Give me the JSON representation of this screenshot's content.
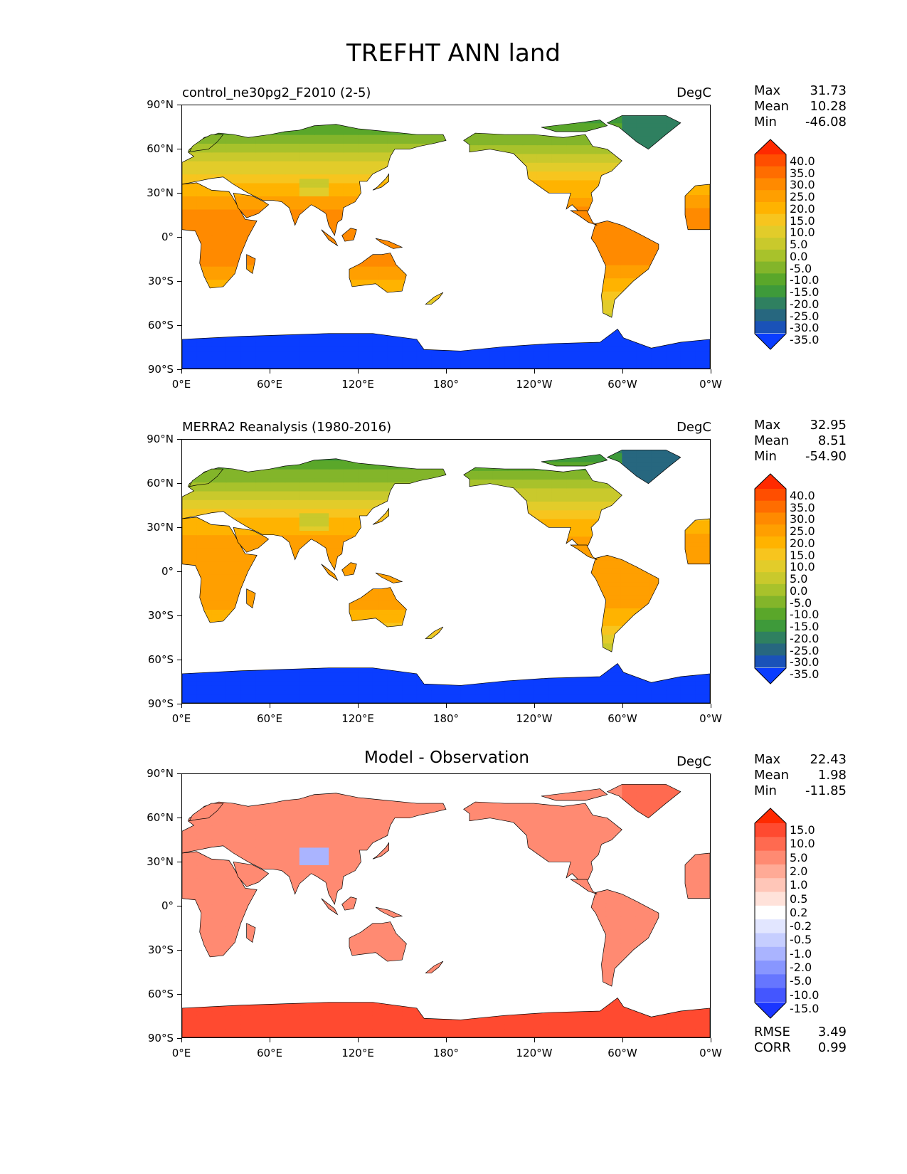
{
  "title": "TREFHT ANN land",
  "lat_labels": [
    "90°N",
    "60°N",
    "30°N",
    "0°",
    "30°S",
    "60°S",
    "90°S"
  ],
  "lon_labels": [
    "0°E",
    "60°E",
    "120°E",
    "180°",
    "120°W",
    "60°W",
    "0°W"
  ],
  "temp_levels": [
    "40.0",
    "35.0",
    "30.0",
    "25.0",
    "20.0",
    "15.0",
    "10.0",
    "5.0",
    "0.0",
    "-5.0",
    "-10.0",
    "-15.0",
    "-20.0",
    "-25.0",
    "-30.0",
    "-35.0"
  ],
  "temp_colors": [
    "#ff2a00",
    "#ff4e00",
    "#ff6d00",
    "#ff8a00",
    "#ff9f00",
    "#ffb300",
    "#f7c51e",
    "#e2cc2a",
    "#c9c92c",
    "#a8c22b",
    "#83b52a",
    "#5aa72a",
    "#3e9a3a",
    "#2f8060",
    "#27677f",
    "#1a52b8",
    "#0a3dff"
  ],
  "diff_levels": [
    "15.0",
    "10.0",
    "5.0",
    "2.0",
    "1.0",
    "0.5",
    "0.2",
    "-0.2",
    "-0.5",
    "-1.0",
    "-2.0",
    "-5.0",
    "-10.0",
    "-15.0"
  ],
  "diff_colors": [
    "#ff2a00",
    "#ff4a30",
    "#ff6a50",
    "#ff8a72",
    "#ffaa96",
    "#ffc6b8",
    "#ffe2da",
    "#ffffff",
    "#e2e6ff",
    "#c6ceff",
    "#aab4ff",
    "#8896ff",
    "#6676ff",
    "#4456ff",
    "#1a36ff"
  ],
  "panels": [
    {
      "title_left": "control_ne30pg2_F2010 (2-5)",
      "title_center": "",
      "units": "DegC",
      "stats": [
        {
          "label": "Max",
          "value": "31.73"
        },
        {
          "label": "Mean",
          "value": "10.28"
        },
        {
          "label": "Min",
          "value": "-46.08"
        }
      ],
      "scheme": "temp"
    },
    {
      "title_left": "MERRA2 Reanalysis (1980-2016)",
      "title_center": "",
      "units": "DegC",
      "stats": [
        {
          "label": "Max",
          "value": "32.95"
        },
        {
          "label": "Mean",
          "value": "8.51"
        },
        {
          "label": "Min",
          "value": "-54.90"
        }
      ],
      "scheme": "temp"
    },
    {
      "title_left": "",
      "title_center": "Model - Observation",
      "units": "DegC",
      "stats": [
        {
          "label": "Max",
          "value": "22.43"
        },
        {
          "label": "Mean",
          "value": "1.98"
        },
        {
          "label": "Min",
          "value": "-11.85"
        }
      ],
      "scheme": "diff"
    }
  ],
  "metrics": [
    {
      "label": "RMSE",
      "value": "3.49"
    },
    {
      "label": "CORR",
      "value": "0.99"
    }
  ]
}
